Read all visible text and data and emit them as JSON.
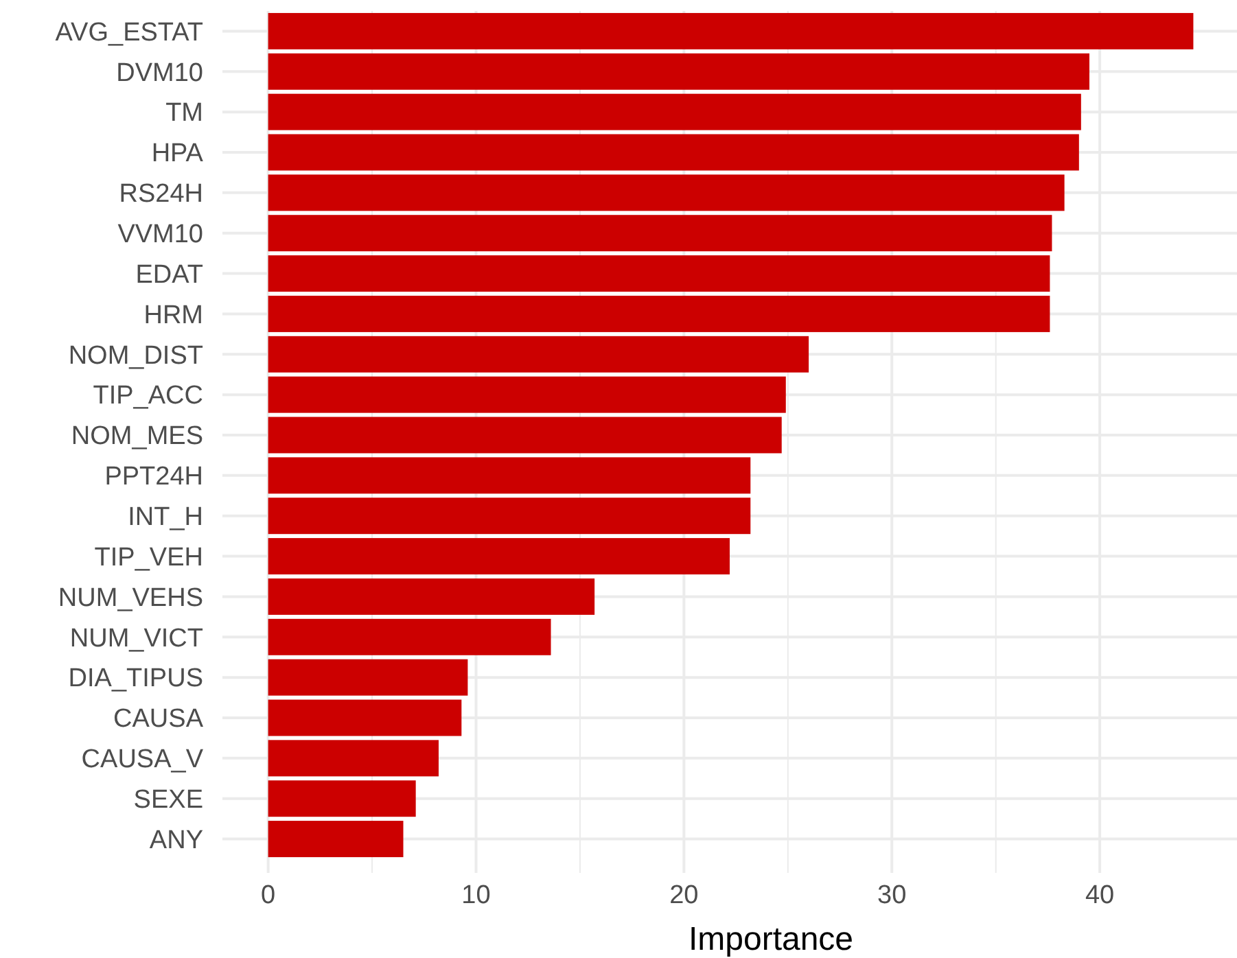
{
  "chart_data": {
    "type": "bar",
    "orientation": "horizontal",
    "xlabel": "Importance",
    "categories": [
      "AVG_ESTAT",
      "DVM10",
      "TM",
      "HPA",
      "RS24H",
      "VVM10",
      "EDAT",
      "HRM",
      "NOM_DIST",
      "TIP_ACC",
      "NOM_MES",
      "PPT24H",
      "INT_H",
      "TIP_VEH",
      "NUM_VEHS",
      "NUM_VICT",
      "DIA_TIPUS",
      "CAUSA",
      "CAUSA_V",
      "SEXE",
      "ANY"
    ],
    "values": [
      44.5,
      39.5,
      39.1,
      39.0,
      38.3,
      37.7,
      37.6,
      37.6,
      26.0,
      24.9,
      24.7,
      23.2,
      23.2,
      22.2,
      15.7,
      13.6,
      9.6,
      9.3,
      8.2,
      7.1,
      6.5
    ],
    "color": "#cc0000",
    "xlim": [
      -2.2,
      46.6
    ],
    "xticks": [
      0,
      10,
      20,
      30,
      40
    ],
    "grid": true
  }
}
